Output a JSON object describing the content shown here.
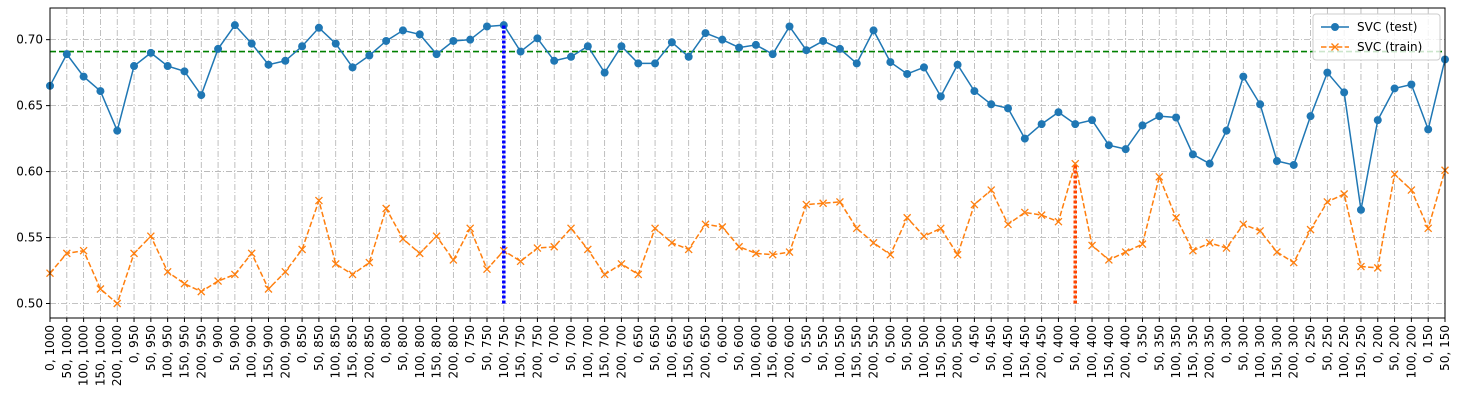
{
  "chart_data": {
    "type": "line",
    "categories": [
      "0, 1000",
      "50, 1000",
      "100, 1000",
      "150, 1000",
      "200, 1000",
      "0, 950",
      "50, 950",
      "100, 950",
      "150, 950",
      "200, 950",
      "0, 900",
      "50, 900",
      "100, 900",
      "150, 900",
      "200, 900",
      "0, 850",
      "50, 850",
      "100, 850",
      "150, 850",
      "200, 850",
      "0, 800",
      "50, 800",
      "100, 800",
      "150, 800",
      "200, 800",
      "0, 750",
      "50, 750",
      "100, 750",
      "150, 750",
      "200, 750",
      "0, 700",
      "50, 700",
      "100, 700",
      "150, 700",
      "200, 700",
      "0, 650",
      "50, 650",
      "100, 650",
      "150, 650",
      "200, 650",
      "0, 600",
      "50, 600",
      "100, 600",
      "150, 600",
      "200, 600",
      "0, 550",
      "50, 550",
      "100, 550",
      "150, 550",
      "200, 550",
      "0, 500",
      "50, 500",
      "100, 500",
      "150, 500",
      "200, 500",
      "0, 450",
      "50, 450",
      "100, 450",
      "150, 450",
      "200, 450",
      "0, 400",
      "50, 400",
      "100, 400",
      "150, 400",
      "200, 400",
      "0, 350",
      "50, 350",
      "100, 350",
      "150, 350",
      "200, 350",
      "0, 300",
      "50, 300",
      "100, 300",
      "150, 300",
      "200, 300",
      "0, 250",
      "50, 250",
      "100, 250",
      "150, 250",
      "0, 200",
      "50, 200",
      "100, 200",
      "0, 150",
      "50, 150"
    ],
    "series": [
      {
        "name": "SVC (test)",
        "color": "#1f77b4",
        "marker": "circle",
        "dash": "solid",
        "values": [
          0.665,
          0.689,
          0.672,
          0.661,
          0.631,
          0.68,
          0.69,
          0.68,
          0.676,
          0.658,
          0.693,
          0.711,
          0.697,
          0.681,
          0.684,
          0.695,
          0.709,
          0.697,
          0.679,
          0.688,
          0.699,
          0.707,
          0.704,
          0.689,
          0.699,
          0.7,
          0.71,
          0.711,
          0.691,
          0.701,
          0.684,
          0.687,
          0.695,
          0.675,
          0.695,
          0.682,
          0.682,
          0.698,
          0.687,
          0.705,
          0.7,
          0.694,
          0.696,
          0.689,
          0.71,
          0.692,
          0.699,
          0.693,
          0.682,
          0.707,
          0.683,
          0.674,
          0.679,
          0.657,
          0.681,
          0.661,
          0.651,
          0.648,
          0.625,
          0.636,
          0.645,
          0.636,
          0.639,
          0.62,
          0.617,
          0.635,
          0.642,
          0.641,
          0.613,
          0.606,
          0.631,
          0.672,
          0.651,
          0.608,
          0.605,
          0.642,
          0.675,
          0.66,
          0.571,
          0.639,
          0.663,
          0.666,
          0.632,
          0.685
        ]
      },
      {
        "name": "SVC (train)",
        "color": "#ff7f0e",
        "marker": "x",
        "dash": "dashed",
        "values": [
          0.523,
          0.538,
          0.54,
          0.511,
          0.5,
          0.538,
          0.551,
          0.524,
          0.515,
          0.509,
          0.517,
          0.522,
          0.538,
          0.511,
          0.524,
          0.541,
          0.578,
          0.53,
          0.522,
          0.531,
          0.572,
          0.549,
          0.538,
          0.551,
          0.533,
          0.557,
          0.526,
          0.54,
          0.532,
          0.542,
          0.543,
          0.557,
          0.541,
          0.522,
          0.53,
          0.522,
          0.557,
          0.546,
          0.541,
          0.56,
          0.558,
          0.543,
          0.538,
          0.537,
          0.539,
          0.575,
          0.576,
          0.577,
          0.557,
          0.546,
          0.537,
          0.565,
          0.551,
          0.557,
          0.537,
          0.575,
          0.586,
          0.56,
          0.569,
          0.567,
          0.562,
          0.606,
          0.544,
          0.533,
          0.539,
          0.545,
          0.596,
          0.565,
          0.54,
          0.546,
          0.542,
          0.56,
          0.555,
          0.539,
          0.531,
          0.556,
          0.577,
          0.583,
          0.528,
          0.527,
          0.598,
          0.586,
          0.557,
          0.601
        ]
      }
    ],
    "ylim": [
      0.489,
      0.724
    ],
    "yticks": [
      {
        "value": 0.5,
        "label": "0.50"
      },
      {
        "value": 0.55,
        "label": "0.55"
      },
      {
        "value": 0.6,
        "label": "0.60"
      },
      {
        "value": 0.65,
        "label": "0.65"
      },
      {
        "value": 0.7,
        "label": "0.70"
      }
    ],
    "grid": true,
    "legend": "upper right",
    "hline": {
      "value": 0.691,
      "color": "green"
    },
    "vlines": [
      {
        "at": "100, 750",
        "from": 0.5,
        "to": 0.711,
        "color": "blue"
      },
      {
        "at": "50, 400",
        "from": 0.5,
        "to": 0.606,
        "color": "orangered"
      }
    ]
  }
}
